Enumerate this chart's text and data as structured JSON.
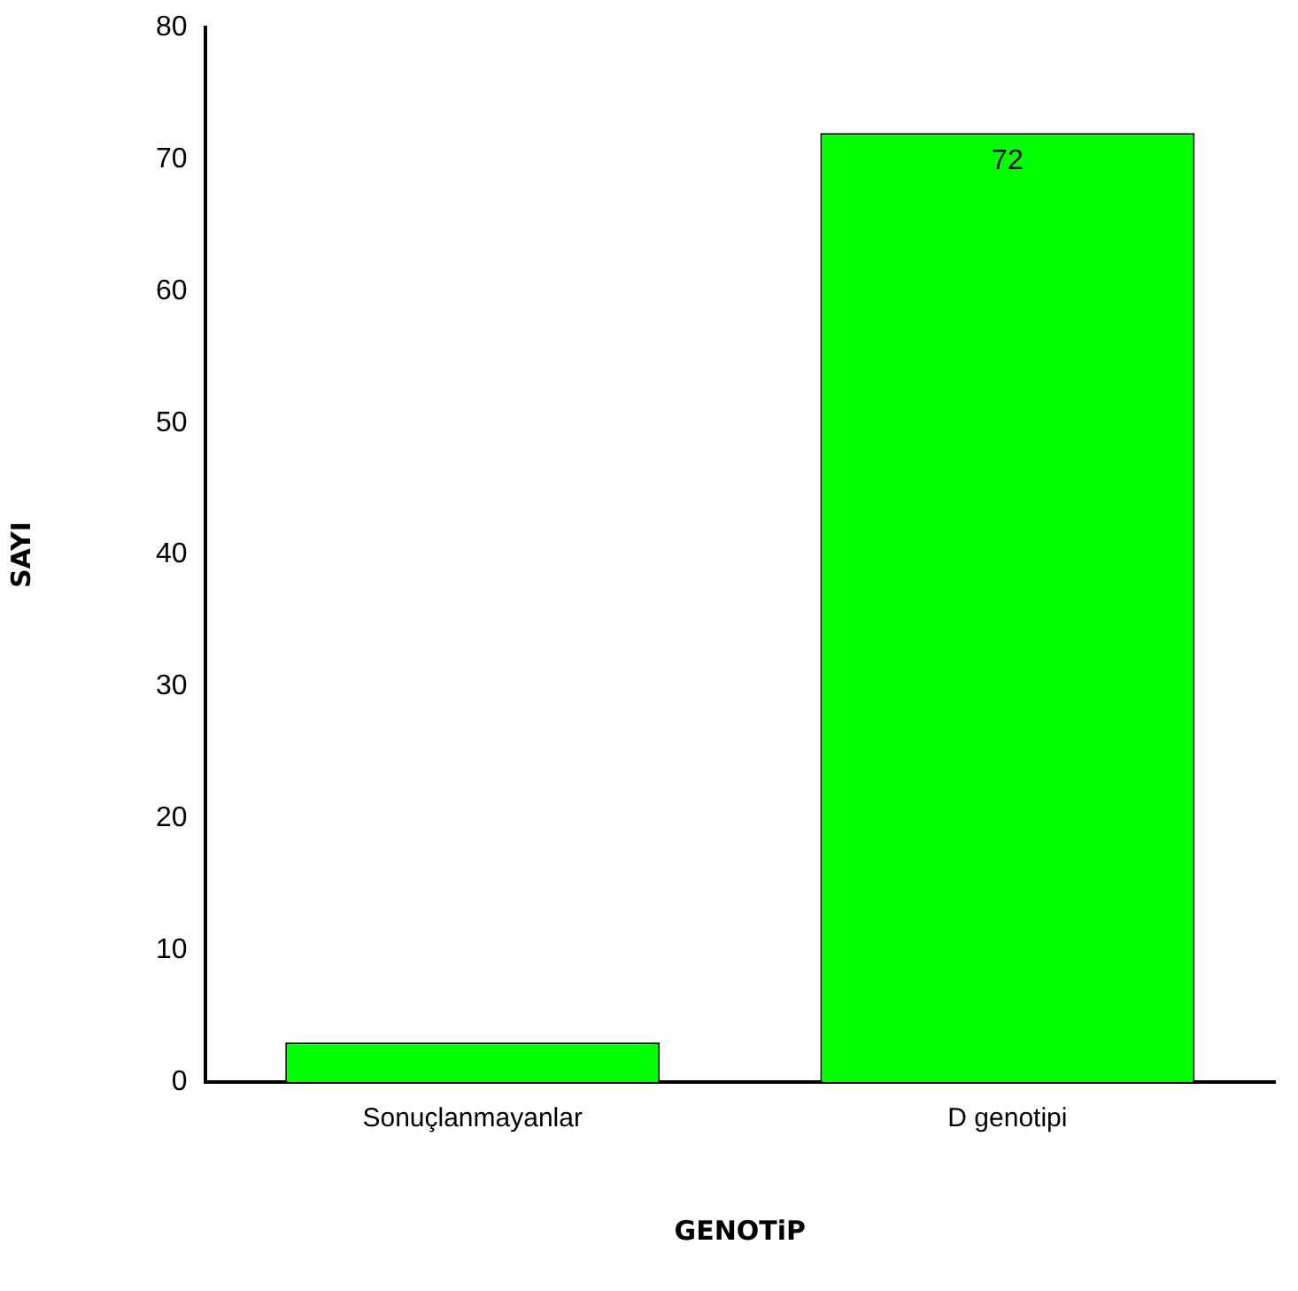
{
  "chart_data": {
    "type": "bar",
    "xlabel": "GENOTiP",
    "ylabel": "SAYI",
    "categories": [
      "Sonuçlanmayanlar",
      "D genotipi"
    ],
    "values": [
      3,
      72
    ],
    "value_labels": [
      null,
      "72"
    ],
    "color": "#00ff00",
    "ylim": [
      0,
      80
    ],
    "yticks": [
      0,
      10,
      20,
      30,
      40,
      50,
      60,
      70,
      80
    ],
    "grid": false,
    "legend": false
  }
}
